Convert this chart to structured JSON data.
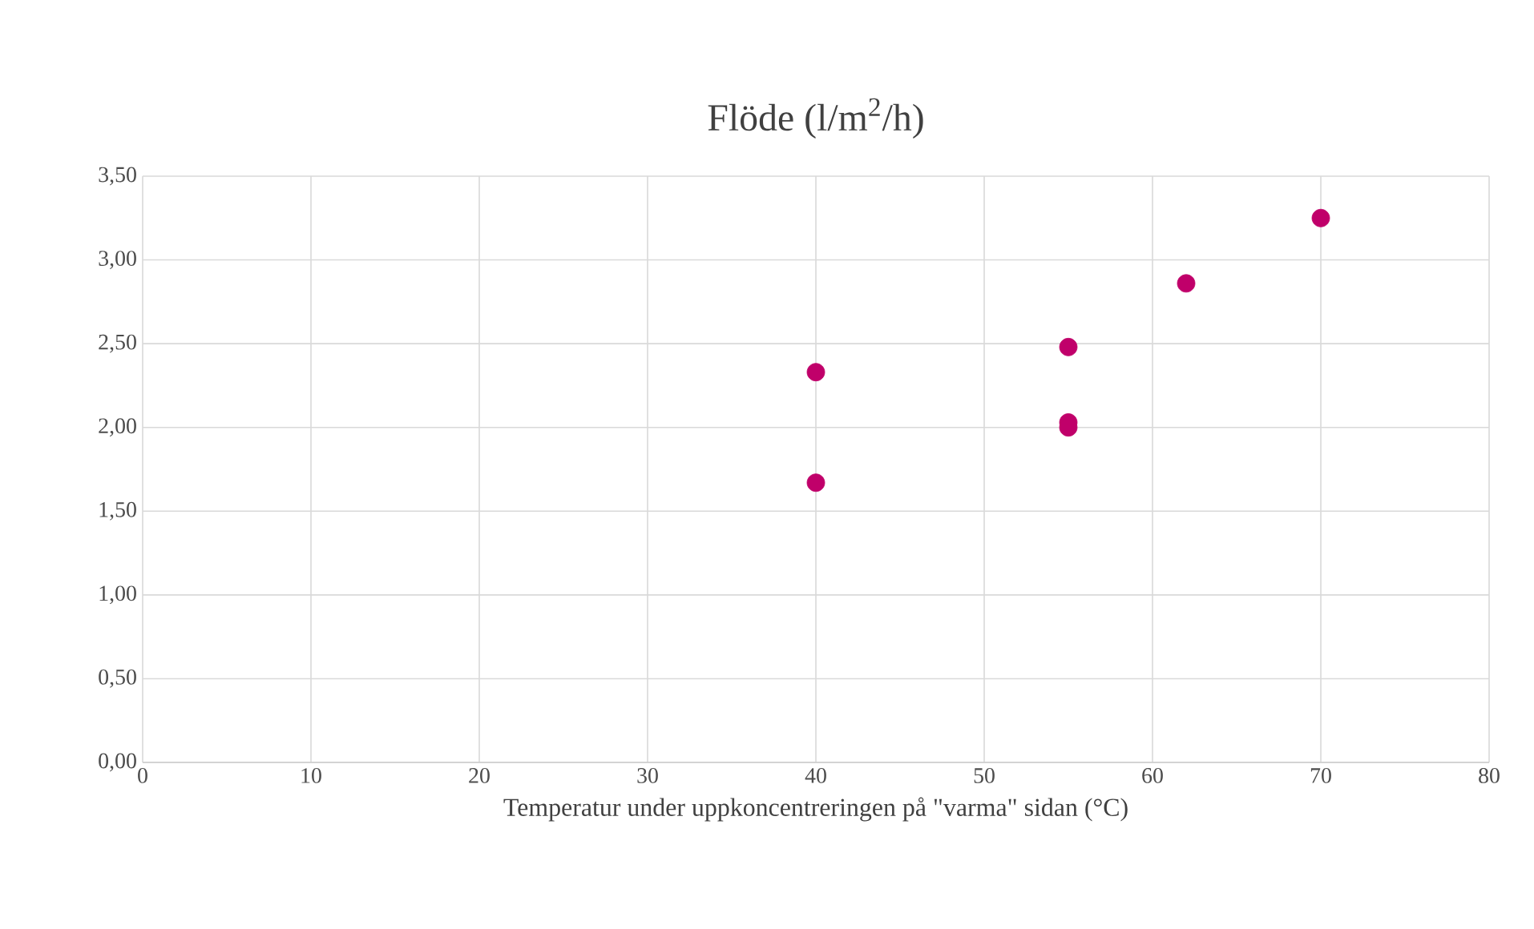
{
  "chart_data": {
    "type": "scatter",
    "title": "Flöde (l/m$^{2}$/h)",
    "xlabel": "Temperatur under uppkoncentreringen på \"varma\" sidan (°C)",
    "x": [
      40,
      40,
      55,
      55,
      55,
      62,
      70
    ],
    "values": [
      2.33,
      1.67,
      2.48,
      2.03,
      2.0,
      2.86,
      3.25
    ],
    "color": "#c0006a",
    "marker": "circle",
    "grid": true,
    "xlim": [
      0,
      80
    ],
    "xticks": [
      0,
      10,
      20,
      30,
      40,
      50,
      60,
      70,
      80
    ],
    "ylim": [
      0,
      3.5
    ],
    "yticks": [
      {
        "value": 0,
        "label": "0,00"
      },
      {
        "value": 0.5,
        "label": "0,50"
      },
      {
        "value": 1,
        "label": "1,00"
      },
      {
        "value": 1.5,
        "label": "1,50"
      },
      {
        "value": 2,
        "label": "2,00"
      },
      {
        "value": 2.5,
        "label": "2,50"
      },
      {
        "value": 3,
        "label": "3,00"
      },
      {
        "value": 3.5,
        "label": "3,50"
      }
    ]
  }
}
